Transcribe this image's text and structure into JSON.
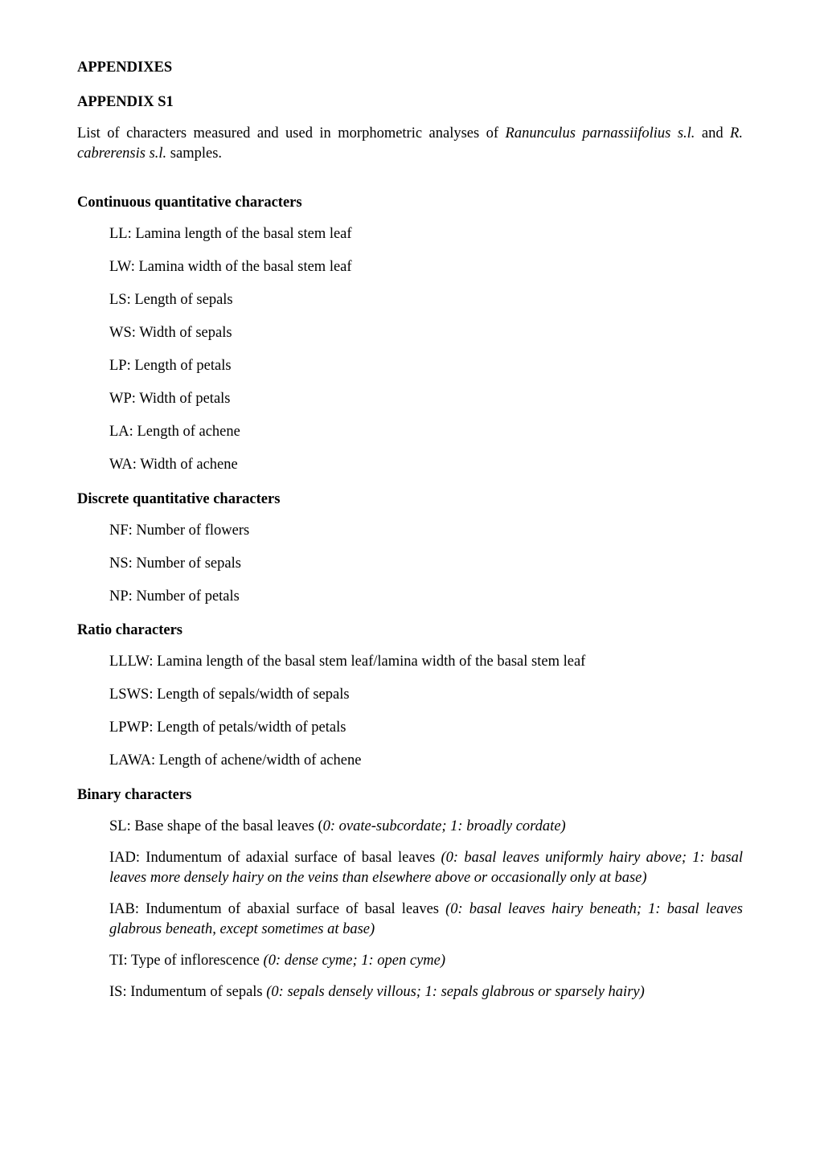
{
  "typography": {
    "font_family": "Times New Roman",
    "body_fontsize_pt": 14,
    "heading_weight": "bold",
    "text_color": "#000000",
    "background_color": "#ffffff"
  },
  "headings": {
    "appendixes": "APPENDIXES",
    "appendix_s1": "APPENDIX S1",
    "continuous": "Continuous quantitative characters",
    "discrete": "Discrete quantitative characters",
    "ratio": "Ratio characters",
    "binary": "Binary characters"
  },
  "intro": {
    "prefix": "List of characters measured and used in morphometric analyses of ",
    "taxon1": "Ranunculus parnassiifolius s.l.",
    "mid": " and ",
    "taxon2": "R. cabrerensis s.l.",
    "suffix": " samples."
  },
  "continuous": [
    {
      "code": "LL",
      "desc": "Lamina length of the basal stem leaf"
    },
    {
      "code": "LW",
      "desc": "Lamina width of the basal stem leaf"
    },
    {
      "code": "LS",
      "desc": "Length of sepals"
    },
    {
      "code": "WS",
      "desc": "Width of sepals"
    },
    {
      "code": "LP",
      "desc": "Length of petals"
    },
    {
      "code": "WP",
      "desc": "Width of petals"
    },
    {
      "code": "LA",
      "desc": "Length of achene"
    },
    {
      "code": "WA",
      "desc": "Width of achene"
    }
  ],
  "discrete": [
    {
      "code": "NF",
      "desc": "Number of flowers"
    },
    {
      "code": "NS",
      "desc": "Number of sepals"
    },
    {
      "code": "NP",
      "desc": "Number of petals"
    }
  ],
  "ratio": [
    {
      "code": "LLLW",
      "desc": "Lamina length of the basal stem leaf/lamina width of the basal stem leaf"
    },
    {
      "code": "LSWS",
      "desc": "Length of sepals/width of sepals"
    },
    {
      "code": "LPWP",
      "desc": "Length of petals/width of petals"
    },
    {
      "code": "LAWA",
      "desc": "Length of achene/width of achene"
    }
  ],
  "binary": [
    {
      "code": "SL",
      "desc_plain": "Base shape of the basal leaves (",
      "desc_italic": "0: ovate-subcordate; 1: broadly cordate)"
    },
    {
      "code": "IAD",
      "desc_plain": "Indumentum of adaxial surface of basal leaves ",
      "desc_italic": "(0: basal leaves uniformly hairy above; 1: basal leaves more densely hairy on the veins than elsewhere above or occasionally only at base)"
    },
    {
      "code": "IAB",
      "desc_plain": "Indumentum of abaxial surface of basal leaves ",
      "desc_italic": "(0: basal leaves hairy beneath; 1: basal leaves glabrous beneath, except sometimes at base)"
    },
    {
      "code": "TI",
      "desc_plain": "Type of inflorescence ",
      "desc_italic": "(0: dense cyme; 1: open cyme)"
    },
    {
      "code": "IS",
      "desc_plain": "Indumentum of sepals ",
      "desc_italic": "(0: sepals densely villous; 1: sepals glabrous or sparsely hairy)"
    }
  ]
}
